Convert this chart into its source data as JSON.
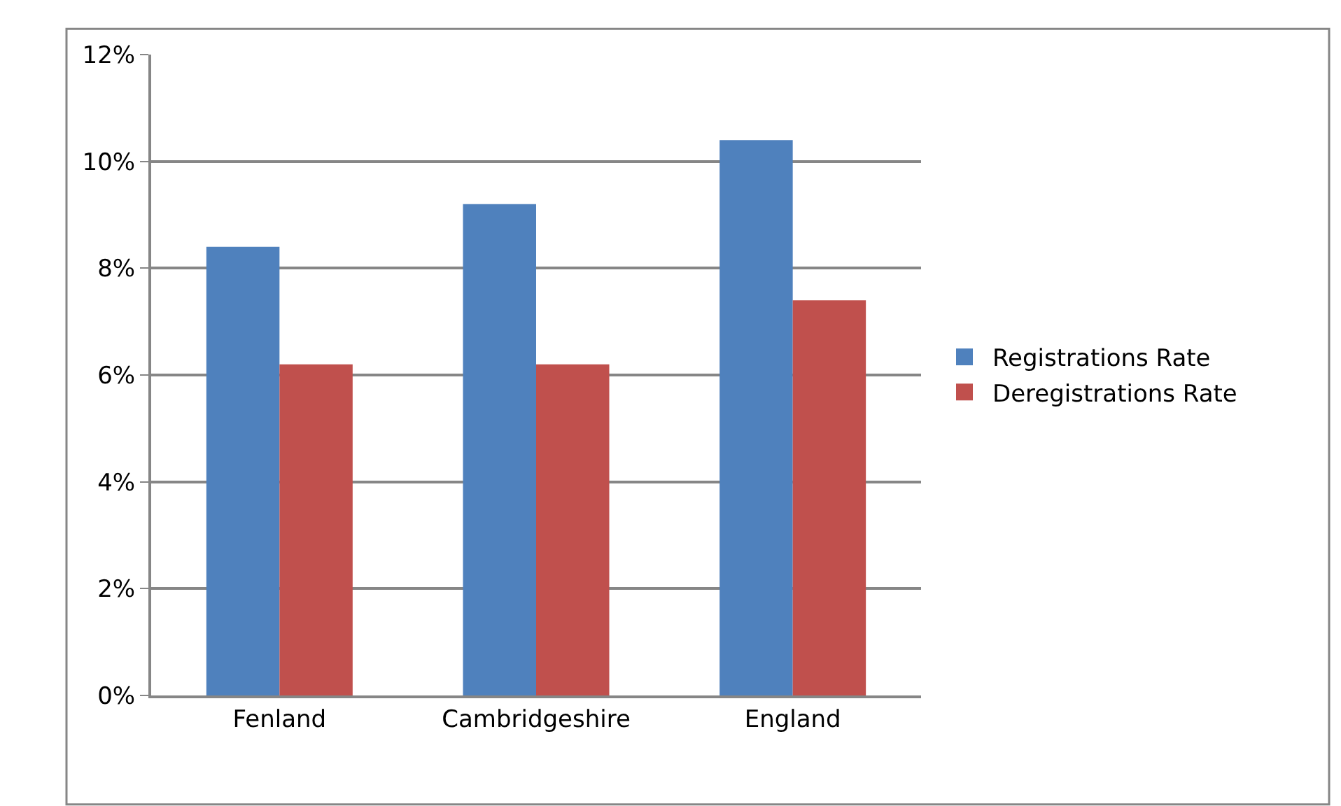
{
  "chart_data": {
    "type": "bar",
    "categories": [
      "Fenland",
      "Cambridgeshire",
      "England"
    ],
    "series": [
      {
        "name": "Registrations Rate",
        "color": "#4f81bd",
        "values": [
          8.4,
          9.2,
          10.4
        ]
      },
      {
        "name": "Deregistrations Rate",
        "color": "#c0504d",
        "values": [
          6.2,
          6.2,
          7.4
        ]
      }
    ],
    "ylim": [
      0,
      12
    ],
    "yticks": [
      {
        "value": 0,
        "label": "0%"
      },
      {
        "value": 2,
        "label": "2%"
      },
      {
        "value": 4,
        "label": "4%"
      },
      {
        "value": 6,
        "label": "6%"
      },
      {
        "value": 8,
        "label": "8%"
      },
      {
        "value": 10,
        "label": "10%"
      },
      {
        "value": 12,
        "label": "12%"
      }
    ],
    "grid": "y",
    "legend": "right"
  }
}
